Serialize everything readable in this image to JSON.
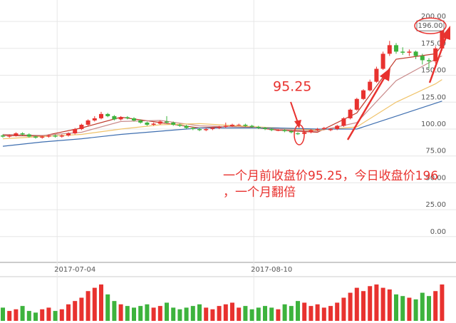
{
  "chart_data": {
    "type": "candlestick",
    "categories": [
      null,
      null,
      null,
      null,
      null,
      null,
      null,
      null,
      null,
      null,
      null,
      "2017-07-04",
      null,
      null,
      null,
      null,
      null,
      null,
      null,
      null,
      null,
      null,
      null,
      null,
      null,
      null,
      null,
      null,
      null,
      null,
      null,
      null,
      null,
      null,
      null,
      null,
      null,
      null,
      null,
      null,
      null,
      "2017-08-10",
      null,
      null,
      null,
      null,
      null,
      null,
      null,
      null,
      null,
      null,
      null,
      null,
      null,
      null,
      null,
      null,
      null,
      null,
      null,
      null,
      null,
      null,
      null,
      null,
      null,
      null
    ],
    "open": [
      94,
      93,
      94,
      96,
      95,
      93,
      92,
      93,
      94,
      93,
      94,
      96,
      100,
      104,
      108,
      110,
      114,
      112,
      109,
      111,
      110,
      108,
      106,
      104,
      105,
      107,
      106,
      104,
      103,
      101,
      100,
      99,
      100,
      101,
      102,
      103,
      104,
      104,
      103,
      102,
      101,
      100,
      99,
      99,
      98,
      96,
      95.5,
      97,
      99,
      100,
      99,
      100,
      103,
      110,
      118,
      128,
      136,
      144,
      156,
      170,
      178,
      172,
      171,
      172,
      168,
      164,
      163,
      175
    ],
    "high": [
      95,
      95,
      97,
      97,
      96,
      94,
      94,
      95,
      95,
      95,
      97,
      101,
      105,
      109,
      112,
      116,
      115,
      113,
      112,
      112,
      111,
      109,
      107,
      106,
      108,
      112,
      107,
      105,
      104,
      102,
      101,
      101,
      102,
      103,
      106,
      105,
      105,
      105,
      104,
      103,
      102,
      101,
      100,
      100,
      99,
      97,
      98,
      100,
      101,
      102,
      101,
      104,
      111,
      119,
      129,
      137,
      146,
      158,
      172,
      182,
      180,
      176,
      174,
      173,
      170,
      166,
      177,
      200
    ],
    "low": [
      92,
      92,
      93,
      94,
      92,
      91,
      91,
      92,
      92,
      92,
      93,
      95,
      99,
      103,
      107,
      109,
      111,
      108,
      108,
      109,
      107,
      105,
      103,
      103,
      104,
      105,
      103,
      102,
      100,
      99,
      98,
      98,
      99,
      100,
      101,
      102,
      103,
      102,
      101,
      100,
      99,
      98,
      98,
      97,
      96,
      94.5,
      94.5,
      96,
      98,
      99,
      98,
      99,
      102,
      109,
      117,
      127,
      135,
      143,
      155,
      168,
      170,
      169,
      168,
      165,
      160,
      156,
      161,
      173
    ],
    "close": [
      93,
      94,
      96,
      95,
      93,
      92,
      93,
      94,
      93,
      94,
      96,
      100,
      104,
      108,
      110,
      114,
      112,
      109,
      111,
      110,
      108,
      106,
      104,
      105,
      107,
      106,
      104,
      103,
      101,
      100,
      99,
      100,
      101,
      102,
      103,
      104,
      104,
      103,
      102,
      101,
      100,
      99,
      99,
      98,
      97,
      95.25,
      97,
      99,
      100,
      101,
      100,
      103,
      110,
      118,
      128,
      136,
      144,
      156,
      170,
      178,
      172,
      171,
      172,
      168,
      164,
      163,
      175,
      196
    ],
    "up_color": "#e8322f",
    "down_color": "#3db33d",
    "ylim": [
      -24,
      220
    ],
    "yticks": [
      {
        "value": 0,
        "label": "0.00"
      },
      {
        "value": 25,
        "label": "25.00"
      },
      {
        "value": 50,
        "label": "50.00"
      },
      {
        "value": 75,
        "label": "75.00"
      },
      {
        "value": 100,
        "label": "100.00"
      },
      {
        "value": 125,
        "label": "125.00"
      },
      {
        "value": 150,
        "label": "150.00"
      },
      {
        "value": 175,
        "label": "175.00"
      },
      {
        "value": 200,
        "label": "200.00"
      }
    ],
    "grid": true,
    "last_price_label": "196.00",
    "series": [
      {
        "color": "#c0392b",
        "x": [
          0,
          6,
          12,
          18,
          24,
          30,
          36,
          42,
          48,
          54,
          60,
          66,
          67
        ],
        "values": [
          94,
          93.5,
          101,
          111,
          106,
          101,
          103,
          99,
          97,
          115,
          165,
          170,
          178
        ]
      },
      {
        "color": "#c98a8a",
        "x": [
          0,
          6,
          12,
          18,
          24,
          30,
          36,
          42,
          48,
          54,
          60,
          66,
          67
        ],
        "values": [
          95,
          94,
          97,
          107,
          108,
          103,
          102,
          100,
          98,
          106,
          145,
          165,
          168
        ]
      },
      {
        "color": "#f0c36a",
        "x": [
          0,
          6,
          12,
          18,
          24,
          30,
          36,
          42,
          48,
          54,
          60,
          66,
          67
        ],
        "values": [
          91,
          93,
          95,
          100,
          104,
          105,
          103,
          101,
          99,
          102,
          125,
          142,
          146
        ]
      },
      {
        "color": "#3f6fb0",
        "x": [
          0,
          6,
          12,
          18,
          24,
          30,
          36,
          42,
          48,
          54,
          60,
          66,
          67
        ],
        "values": [
          84,
          88,
          91,
          95,
          98,
          101,
          101,
          101,
          100,
          100,
          112,
          124,
          126
        ]
      }
    ],
    "volume": {
      "ylim": [
        0,
        25
      ],
      "values": [
        8,
        6,
        7,
        9,
        6,
        5,
        7,
        8,
        6,
        7,
        10,
        12,
        14,
        18,
        20,
        22,
        16,
        12,
        10,
        9,
        8,
        9,
        10,
        8,
        9,
        11,
        8,
        7,
        8,
        9,
        10,
        8,
        7,
        9,
        10,
        11,
        8,
        9,
        7,
        8,
        9,
        8,
        7,
        10,
        9,
        12,
        11,
        9,
        10,
        8,
        9,
        11,
        14,
        17,
        20,
        18,
        21,
        22,
        20,
        19,
        16,
        15,
        14,
        13,
        17,
        15,
        18,
        22
      ]
    },
    "annotations": [
      "95.25",
      "一个月前收盘价95.25，今日收盘价196",
      "，一个月翻倍"
    ]
  }
}
